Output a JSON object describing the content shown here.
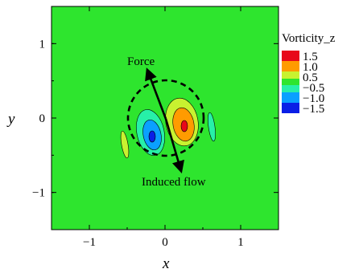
{
  "chart_data": {
    "type": "heatmap",
    "title": "",
    "xlabel": "x",
    "ylabel": "y",
    "xlim": [
      -1.5,
      1.5
    ],
    "ylim": [
      -1.5,
      1.5
    ],
    "xticks": [
      "−1",
      "0",
      "1"
    ],
    "yticks": [
      "1",
      "0",
      "−1"
    ],
    "xtick_values": [
      -1,
      0,
      1
    ],
    "ytick_values": [
      1,
      0,
      -1
    ],
    "legend": {
      "title": "Vorticity_z",
      "position": "right",
      "levels": [
        {
          "label": "1.5",
          "value": 1.5,
          "color": "#e8081a"
        },
        {
          "label": "1.0",
          "value": 1.0,
          "color": "#ff9b00"
        },
        {
          "label": "0.5",
          "value": 0.5,
          "color": "#c8f230"
        },
        {
          "label": "−0.5",
          "value": -0.5,
          "color": "#27f0a8"
        },
        {
          "label": "−1.0",
          "value": -1.0,
          "color": "#0aa0ff"
        },
        {
          "label": "−1.5",
          "value": -1.5,
          "color": "#0a1fe6"
        }
      ],
      "background_color": "#2ee52e"
    },
    "circle": {
      "center": [
        0,
        0
      ],
      "radius": 0.5,
      "style": "dashed"
    },
    "annotations": [
      {
        "text": "Force",
        "arrow_from": [
          0.3,
          -0.7
        ],
        "arrow_to": [
          -0.25,
          0.6
        ]
      },
      {
        "text": "Induced flow",
        "arrow_from": [
          -0.25,
          0.6
        ],
        "arrow_to": [
          0.2,
          -0.7
        ]
      }
    ]
  }
}
